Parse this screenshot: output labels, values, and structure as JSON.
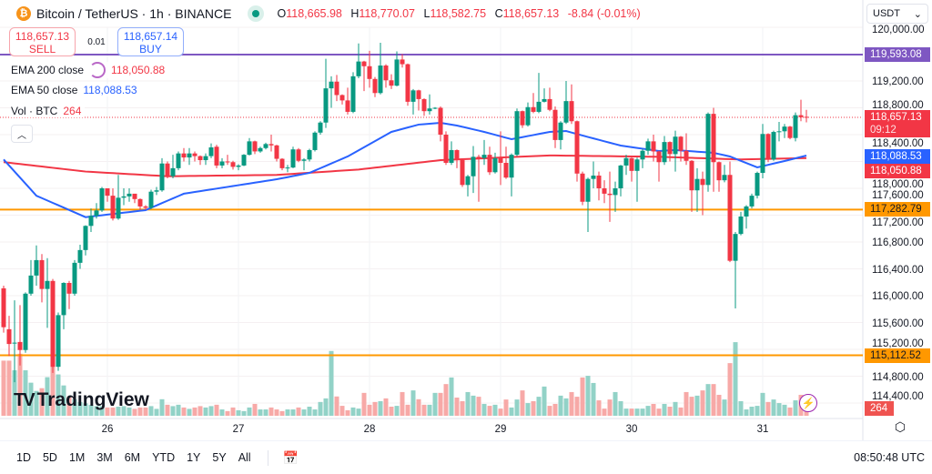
{
  "header": {
    "symbol": "Bitcoin / TetherUS · 1h · BINANCE",
    "icon": "bitcoin-icon",
    "market_status": "open",
    "ohlc": {
      "o_label": "O",
      "o": "118,665.98",
      "h_label": "H",
      "h": "118,770.07",
      "l_label": "L",
      "l": "118,582.75",
      "c_label": "C",
      "c": "118,657.13",
      "change": "-8.84 (-0.01%)"
    }
  },
  "trade": {
    "sell_price": "118,657.13",
    "sell_label": "SELL",
    "spread": "0.01",
    "buy_price": "118,657.14",
    "buy_label": "BUY"
  },
  "legend": {
    "ema200_label": "EMA 200 close",
    "ema200_value": "118,050.88",
    "ema50_label": "EMA 50 close",
    "ema50_value": "118,088.53",
    "vol_label": "Vol · BTC",
    "vol_value": "264"
  },
  "currency": "USDT",
  "price_labels": {
    "hline_top": "119,593.08",
    "last": "118,657.13",
    "countdown": "09:12",
    "ema50": "118,088.53",
    "ema200": "118,050.88",
    "hline_mid": "117,282.79",
    "hline_low": "115,112.52",
    "volume": "264"
  },
  "logo": "TradingView",
  "ranges": [
    "1D",
    "5D",
    "1M",
    "3M",
    "6M",
    "YTD",
    "1Y",
    "5Y",
    "All"
  ],
  "clock": "08:50:48 UTC",
  "colors": {
    "up": "#089981",
    "down": "#f23645",
    "vol_up": "#92d2c7",
    "vol_down": "#f7a9a7",
    "ema200": "#f23645",
    "ema50": "#2962ff",
    "hline_top": "#7e57c2",
    "hline": "#ff9800"
  },
  "chart_data": {
    "type": "candlestick",
    "interval": "1h",
    "y_ticks": [
      120000,
      119200,
      118800,
      118400,
      118000,
      117600,
      117200,
      116800,
      116400,
      116000,
      115600,
      115200,
      114800,
      114400
    ],
    "y_tick_labels": [
      "120,000.00",
      "119,200.00",
      "118,800.00",
      "118,400.00",
      "118,000.00",
      "117,600.00",
      "117,200.00",
      "116,800.00",
      "116,400.00",
      "116,000.00",
      "115,600.00",
      "115,200.00",
      "114,800.00",
      "114,400.00"
    ],
    "x_labels": [
      {
        "label": "26",
        "candle": 19
      },
      {
        "label": "27",
        "candle": 43
      },
      {
        "label": "28",
        "candle": 67
      },
      {
        "label": "29",
        "candle": 91
      },
      {
        "label": "30",
        "candle": 115
      },
      {
        "label": "31",
        "candle": 139
      }
    ],
    "horizontal_lines": [
      119593.08,
      117282.79,
      115112.52
    ],
    "last_price": 118657.13,
    "candles_ohlc": [
      [
        116110,
        116150,
        115450,
        115530
      ],
      [
        115500,
        115700,
        115100,
        115280
      ],
      [
        115290,
        115930,
        114710,
        115300
      ],
      [
        115310,
        115860,
        114960,
        115190
      ],
      [
        115190,
        116050,
        115150,
        116030
      ],
      [
        116030,
        116530,
        116000,
        116300
      ],
      [
        116300,
        116750,
        116150,
        116530
      ],
      [
        116530,
        116620,
        115900,
        116100
      ],
      [
        116100,
        116560,
        115520,
        116220
      ],
      [
        116220,
        116250,
        114850,
        114940
      ],
      [
        114940,
        115750,
        114880,
        115710
      ],
      [
        115710,
        116200,
        115500,
        116190
      ],
      [
        116190,
        116220,
        115800,
        116030
      ],
      [
        116030,
        116530,
        116000,
        116490
      ],
      [
        116490,
        116760,
        116400,
        116680
      ],
      [
        116680,
        117050,
        116600,
        117040
      ],
      [
        117040,
        117300,
        116950,
        117190
      ],
      [
        117190,
        117380,
        117150,
        117270
      ],
      [
        117270,
        117620,
        117250,
        117600
      ],
      [
        117600,
        117600,
        117400,
        117490
      ],
      [
        117490,
        117600,
        117120,
        117150
      ],
      [
        117150,
        117800,
        117130,
        117460
      ],
      [
        117460,
        117600,
        117350,
        117480
      ],
      [
        117480,
        117600,
        117400,
        117520
      ],
      [
        117520,
        117500,
        117380,
        117440
      ],
      [
        117440,
        117450,
        117280,
        117330
      ],
      [
        117330,
        117350,
        117280,
        117310
      ],
      [
        117310,
        117580,
        117290,
        117550
      ],
      [
        117550,
        117620,
        117500,
        117570
      ],
      [
        117570,
        118050,
        117550,
        117970
      ],
      [
        117970,
        118000,
        117750,
        117780
      ],
      [
        117780,
        118100,
        117750,
        117900
      ],
      [
        117900,
        118150,
        117870,
        118120
      ],
      [
        118120,
        118200,
        118000,
        118060
      ],
      [
        118060,
        118200,
        117950,
        118120
      ],
      [
        118120,
        118150,
        118000,
        118080
      ],
      [
        118080,
        118090,
        117950,
        118020
      ],
      [
        118020,
        118120,
        117950,
        118080
      ],
      [
        118080,
        118270,
        118050,
        118210
      ],
      [
        118220,
        118250,
        117900,
        117940
      ],
      [
        117940,
        118050,
        117900,
        118000
      ],
      [
        118000,
        118100,
        117950,
        117990
      ],
      [
        117990,
        118010,
        117880,
        117920
      ],
      [
        117920,
        117960,
        117870,
        117940
      ],
      [
        117940,
        118110,
        117930,
        118100
      ],
      [
        118100,
        118350,
        118090,
        118300
      ],
      [
        118300,
        118310,
        118110,
        118150
      ],
      [
        118150,
        118220,
        118130,
        118200
      ],
      [
        118200,
        118280,
        118180,
        118260
      ],
      [
        118260,
        118400,
        118150,
        118240
      ],
      [
        118240,
        118250,
        118000,
        118040
      ],
      [
        118040,
        118050,
        117870,
        117900
      ],
      [
        117900,
        117950,
        117840,
        117910
      ],
      [
        117910,
        118220,
        117900,
        118180
      ],
      [
        118180,
        118200,
        117990,
        118010
      ],
      [
        118010,
        118050,
        117870,
        118030
      ],
      [
        118030,
        118190,
        118000,
        118170
      ],
      [
        118170,
        118450,
        118150,
        118430
      ],
      [
        118430,
        118600,
        118400,
        118580
      ],
      [
        118580,
        119530,
        118500,
        119090
      ],
      [
        119090,
        119270,
        118800,
        119190
      ],
      [
        119190,
        119290,
        118900,
        118990
      ],
      [
        118990,
        119000,
        118850,
        118910
      ],
      [
        118910,
        119100,
        118700,
        118740
      ],
      [
        118740,
        119330,
        118720,
        119270
      ],
      [
        119270,
        119760,
        119240,
        119490
      ],
      [
        119490,
        119500,
        119050,
        119420
      ],
      [
        119420,
        119650,
        119100,
        119230
      ],
      [
        119230,
        119260,
        118960,
        119020
      ],
      [
        119020,
        119770,
        119000,
        119430
      ],
      [
        119430,
        119450,
        119100,
        119210
      ],
      [
        119210,
        119300,
        119080,
        119130
      ],
      [
        119130,
        119640,
        119120,
        119520
      ],
      [
        119520,
        119600,
        119400,
        119450
      ],
      [
        119450,
        119460,
        118830,
        118890
      ],
      [
        118890,
        119080,
        118700,
        119060
      ],
      [
        119060,
        119070,
        118760,
        118930
      ],
      [
        118930,
        118940,
        118680,
        118750
      ],
      [
        118750,
        119000,
        118700,
        118790
      ],
      [
        118790,
        118810,
        118780,
        118800
      ],
      [
        118800,
        118820,
        118300,
        118400
      ],
      [
        118400,
        118450,
        117950,
        117980
      ],
      [
        117980,
        118300,
        117950,
        118170
      ],
      [
        118170,
        118180,
        117900,
        118020
      ],
      [
        118020,
        118030,
        117620,
        117650
      ],
      [
        117650,
        117800,
        117480,
        117780
      ],
      [
        117780,
        118230,
        117530,
        118070
      ],
      [
        118070,
        118100,
        117400,
        118050
      ],
      [
        118050,
        118320,
        117950,
        118100
      ],
      [
        118100,
        118220,
        117800,
        117840
      ],
      [
        117840,
        118130,
        117820,
        118050
      ],
      [
        118050,
        118450,
        117650,
        117980
      ],
      [
        117980,
        118220,
        117740,
        117760
      ],
      [
        117760,
        118120,
        117480,
        118100
      ],
      [
        118100,
        118790,
        118080,
        118750
      ],
      [
        118750,
        118760,
        118500,
        118540
      ],
      [
        118540,
        118880,
        118520,
        118810
      ],
      [
        118810,
        119020,
        118720,
        118740
      ],
      [
        118740,
        119320,
        118720,
        118890
      ],
      [
        118890,
        119090,
        118880,
        118930
      ],
      [
        118930,
        119100,
        118750,
        118770
      ],
      [
        118770,
        118820,
        118200,
        118320
      ],
      [
        118320,
        118600,
        118180,
        118580
      ],
      [
        118580,
        119200,
        118560,
        118900
      ],
      [
        118900,
        119150,
        118560,
        118600
      ],
      [
        118600,
        118610,
        117700,
        117820
      ],
      [
        117820,
        117850,
        117350,
        117400
      ],
      [
        117400,
        117760,
        116950,
        117740
      ],
      [
        117740,
        118000,
        117600,
        117790
      ],
      [
        117790,
        117850,
        117420,
        117600
      ],
      [
        117600,
        117720,
        117380,
        117520
      ],
      [
        117520,
        117850,
        117100,
        117500
      ],
      [
        117500,
        117700,
        117250,
        117600
      ],
      [
        117600,
        117950,
        117480,
        117940
      ],
      [
        117940,
        118100,
        117800,
        118050
      ],
      [
        118050,
        118060,
        117700,
        117860
      ],
      [
        117860,
        118060,
        117400,
        118030
      ],
      [
        118030,
        118190,
        117900,
        118160
      ],
      [
        118160,
        118340,
        118100,
        118300
      ],
      [
        118300,
        118400,
        118000,
        118150
      ],
      [
        118150,
        118160,
        117700,
        117990
      ],
      [
        117990,
        118380,
        117950,
        118290
      ],
      [
        118290,
        118300,
        118000,
        118110
      ],
      [
        118110,
        118460,
        117850,
        118370
      ],
      [
        118370,
        118380,
        118000,
        118160
      ],
      [
        118160,
        118420,
        117950,
        118010
      ],
      [
        118010,
        118020,
        117250,
        117570
      ],
      [
        117570,
        117900,
        117250,
        117740
      ],
      [
        117740,
        117850,
        117200,
        117650
      ],
      [
        117650,
        118730,
        117550,
        118710
      ],
      [
        118710,
        118800,
        117550,
        117990
      ],
      [
        117990,
        118000,
        117550,
        117720
      ],
      [
        117720,
        117950,
        117690,
        117800
      ],
      [
        117800,
        118000,
        116500,
        116520
      ],
      [
        116520,
        116950,
        115810,
        116920
      ],
      [
        116920,
        117250,
        116900,
        117180
      ],
      [
        117180,
        117350,
        117000,
        117330
      ],
      [
        117330,
        117520,
        117300,
        117490
      ],
      [
        117490,
        117850,
        117450,
        117830
      ],
      [
        117830,
        118560,
        117750,
        118410
      ],
      [
        118410,
        118420,
        117990,
        118030
      ],
      [
        118030,
        118460,
        118010,
        118440
      ],
      [
        118440,
        118590,
        118300,
        118450
      ],
      [
        118450,
        118560,
        118350,
        118520
      ],
      [
        118520,
        118530,
        118330,
        118350
      ],
      [
        118350,
        118730,
        118300,
        118690
      ],
      [
        118690,
        118920,
        118600,
        118660
      ],
      [
        118665.98,
        118770.07,
        118582.75,
        118657.13
      ]
    ],
    "volume_btc": [
      2000,
      2000,
      1650,
      2250,
      1650,
      1200,
      900,
      1000,
      1400,
      1900,
      1500,
      1100,
      700,
      600,
      500,
      450,
      400,
      350,
      350,
      300,
      300,
      330,
      350,
      300,
      250,
      300,
      300,
      350,
      250,
      600,
      400,
      350,
      400,
      300,
      250,
      300,
      350,
      300,
      350,
      400,
      230,
      170,
      300,
      200,
      170,
      300,
      430,
      230,
      230,
      300,
      230,
      170,
      230,
      230,
      300,
      230,
      330,
      230,
      500,
      630,
      2350,
      700,
      360,
      200,
      300,
      260,
      830,
      400,
      500,
      530,
      630,
      330,
      360,
      860,
      400,
      920,
      600,
      400,
      400,
      830,
      830,
      1150,
      1390,
      660,
      530,
      860,
      730,
      690,
      430,
      360,
      400,
      260,
      590,
      300,
      590,
      920,
      460,
      530,
      690,
      1060,
      360,
      430,
      730,
      630,
      860,
      690,
      1390,
      1450,
      1190,
      560,
      260,
      590,
      860,
      530,
      260,
      260,
      260,
      260,
      360,
      430,
      260,
      430,
      330,
      500,
      300,
      860,
      690,
      730,
      920,
      1150,
      1150,
      760,
      590,
      1910,
      2670,
      530,
      230,
      330,
      360,
      830,
      500,
      590,
      460,
      400,
      300,
      560,
      760,
      264
    ],
    "ema200_samples": [
      [
        0,
        117990
      ],
      [
        15,
        117850
      ],
      [
        30,
        117780
      ],
      [
        50,
        117800
      ],
      [
        65,
        117880
      ],
      [
        80,
        118020
      ],
      [
        100,
        118090
      ],
      [
        120,
        118070
      ],
      [
        135,
        118030
      ],
      [
        147,
        118050.88
      ]
    ],
    "ema50_samples": [
      [
        0,
        118030
      ],
      [
        6,
        117490
      ],
      [
        15,
        117170
      ],
      [
        26,
        117275
      ],
      [
        33,
        117520
      ],
      [
        50,
        117735
      ],
      [
        56,
        117830
      ],
      [
        63,
        118075
      ],
      [
        71,
        118441
      ],
      [
        76,
        118550
      ],
      [
        80,
        118576
      ],
      [
        83,
        118536
      ],
      [
        88,
        118441
      ],
      [
        93,
        118332
      ],
      [
        100,
        118441
      ],
      [
        103,
        118454
      ],
      [
        106,
        118387
      ],
      [
        113,
        118237
      ],
      [
        120,
        118156
      ],
      [
        123,
        118170
      ],
      [
        130,
        118129
      ],
      [
        133,
        118075
      ],
      [
        138,
        117912
      ],
      [
        143,
        118007
      ],
      [
        147,
        118088.53
      ]
    ]
  }
}
